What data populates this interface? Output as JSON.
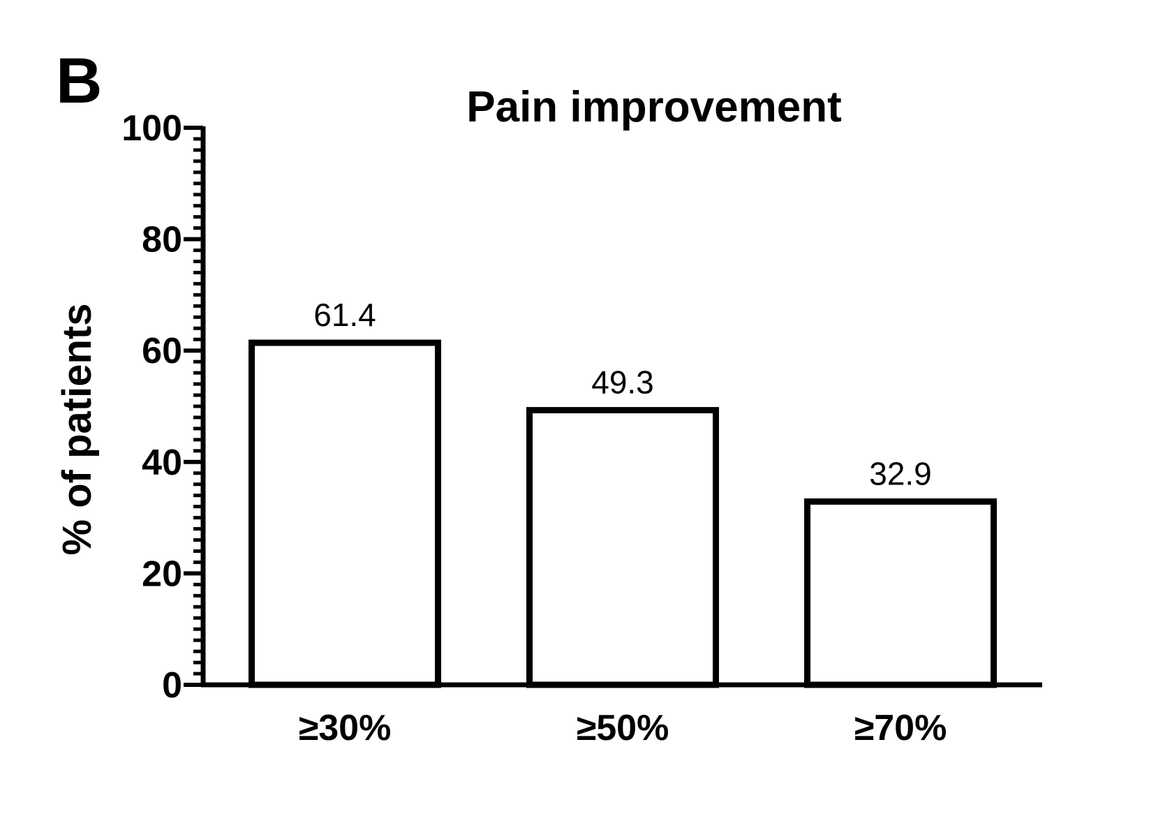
{
  "panel_label": "B",
  "chart_data": {
    "type": "bar",
    "title": "Pain improvement",
    "xlabel": "",
    "ylabel": "% of patients",
    "categories": [
      "≥30%",
      "≥50%",
      "≥70%"
    ],
    "values": [
      61.4,
      49.3,
      32.9
    ],
    "data_labels": [
      "61.4",
      "49.3",
      "32.9"
    ],
    "ylim": [
      0,
      100
    ],
    "yticks": [
      0,
      20,
      40,
      60,
      80,
      100
    ],
    "y_minor_step": 2,
    "grid": false,
    "bar_fill": "#ffffff",
    "bar_stroke": "#000000"
  }
}
